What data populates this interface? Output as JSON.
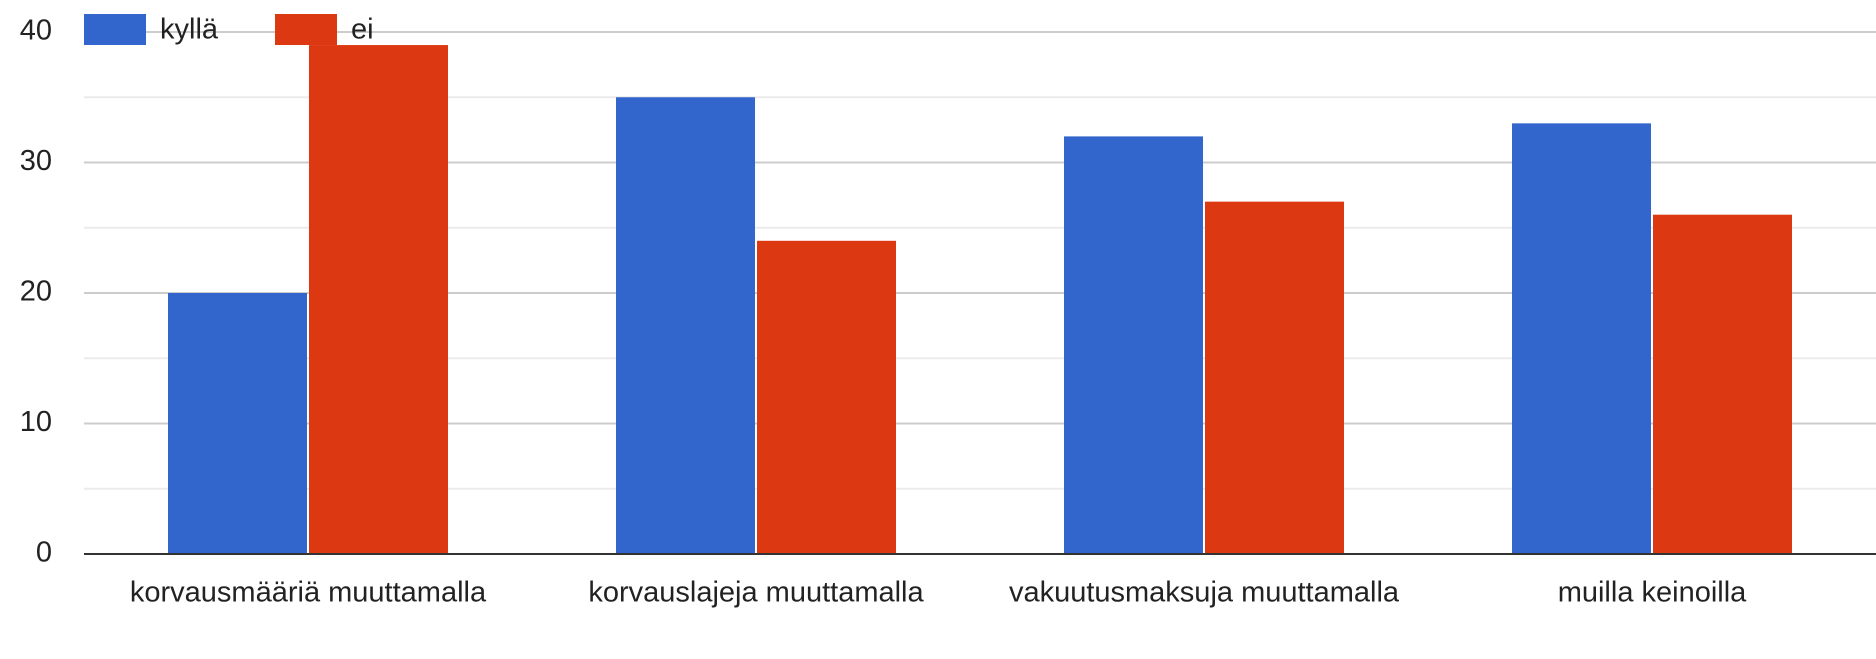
{
  "chart_data": {
    "type": "bar",
    "categories": [
      "korvausmääriä muuttamalla",
      "korvauslajeja muuttamalla",
      "vakuutusmaksuja muuttamalla",
      "muilla keinoilla"
    ],
    "series": [
      {
        "name": "kyllä",
        "color": "#3366cc",
        "values": [
          20,
          35,
          32,
          33
        ]
      },
      {
        "name": "ei",
        "color": "#dc3912",
        "values": [
          39,
          24,
          27,
          26
        ]
      }
    ],
    "ylim": [
      0,
      40
    ],
    "yticks": [
      0,
      10,
      20,
      30,
      40
    ],
    "grid": true,
    "minor_grid": true,
    "legend": "top-left"
  }
}
